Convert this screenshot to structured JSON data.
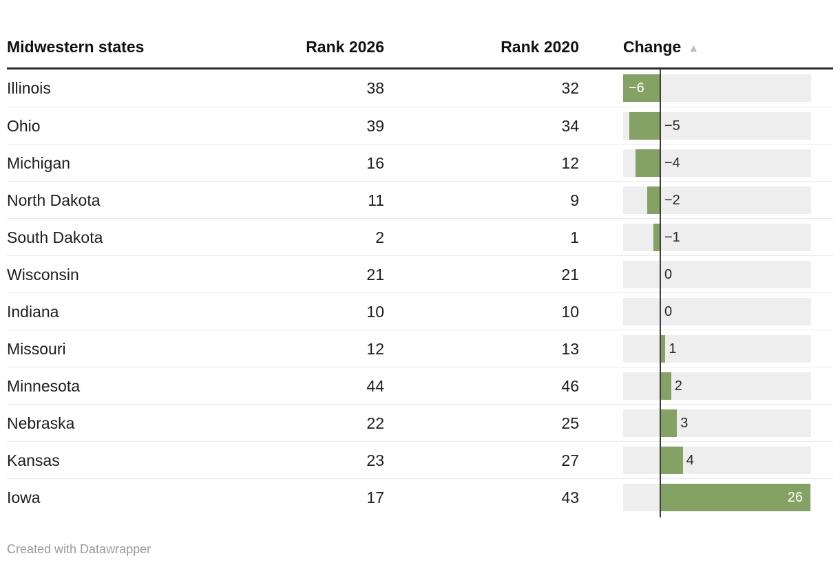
{
  "table": {
    "footer_label": "Created with Datawrapper"
  },
  "sort": {
    "column": "Change",
    "direction": "ascending",
    "arrow_glyph": "▲"
  },
  "colors": {
    "bar_green": "#83a264",
    "bar_track": "#eeeeee",
    "zero_line": "#3c3c3c",
    "header_rule": "#2b2b2b",
    "row_separator": "#e9e9e9",
    "text": "#1d1d1d",
    "bar_label_inside": "#ffffff",
    "sort_arrow": "#bbbbbb",
    "footer_text": "#9b9b9b"
  },
  "chart_data": {
    "type": "table",
    "title": "",
    "columns": [
      "Midwestern states",
      "Rank 2026",
      "Rank 2020",
      "Change"
    ],
    "bar_column": {
      "column": "Change",
      "axis_min": -6,
      "axis_max": 26,
      "zero_line": true,
      "negative_and_positive_same_color": true
    },
    "rows": [
      {
        "state": "Illinois",
        "rank_2026": "38",
        "rank_2020": "32",
        "change": -6,
        "change_label": "−6"
      },
      {
        "state": "Ohio",
        "rank_2026": "39",
        "rank_2020": "34",
        "change": -5,
        "change_label": "−5"
      },
      {
        "state": "Michigan",
        "rank_2026": "16",
        "rank_2020": "12",
        "change": -4,
        "change_label": "−4"
      },
      {
        "state": "North Dakota",
        "rank_2026": "11",
        "rank_2020": "9",
        "change": -2,
        "change_label": "−2"
      },
      {
        "state": "South Dakota",
        "rank_2026": "2",
        "rank_2020": "1",
        "change": -1,
        "change_label": "−1"
      },
      {
        "state": "Wisconsin",
        "rank_2026": "21",
        "rank_2020": "21",
        "change": 0,
        "change_label": "0"
      },
      {
        "state": "Indiana",
        "rank_2026": "10",
        "rank_2020": "10",
        "change": 0,
        "change_label": "0"
      },
      {
        "state": "Missouri",
        "rank_2026": "12",
        "rank_2020": "13",
        "change": 1,
        "change_label": "1"
      },
      {
        "state": "Minnesota",
        "rank_2026": "44",
        "rank_2020": "46",
        "change": 2,
        "change_label": "2"
      },
      {
        "state": "Nebraska",
        "rank_2026": "22",
        "rank_2020": "25",
        "change": 3,
        "change_label": "3"
      },
      {
        "state": "Kansas",
        "rank_2026": "23",
        "rank_2020": "27",
        "change": 4,
        "change_label": "4"
      },
      {
        "state": "Iowa",
        "rank_2026": "17",
        "rank_2020": "43",
        "change": 26,
        "change_label": "26"
      }
    ]
  }
}
